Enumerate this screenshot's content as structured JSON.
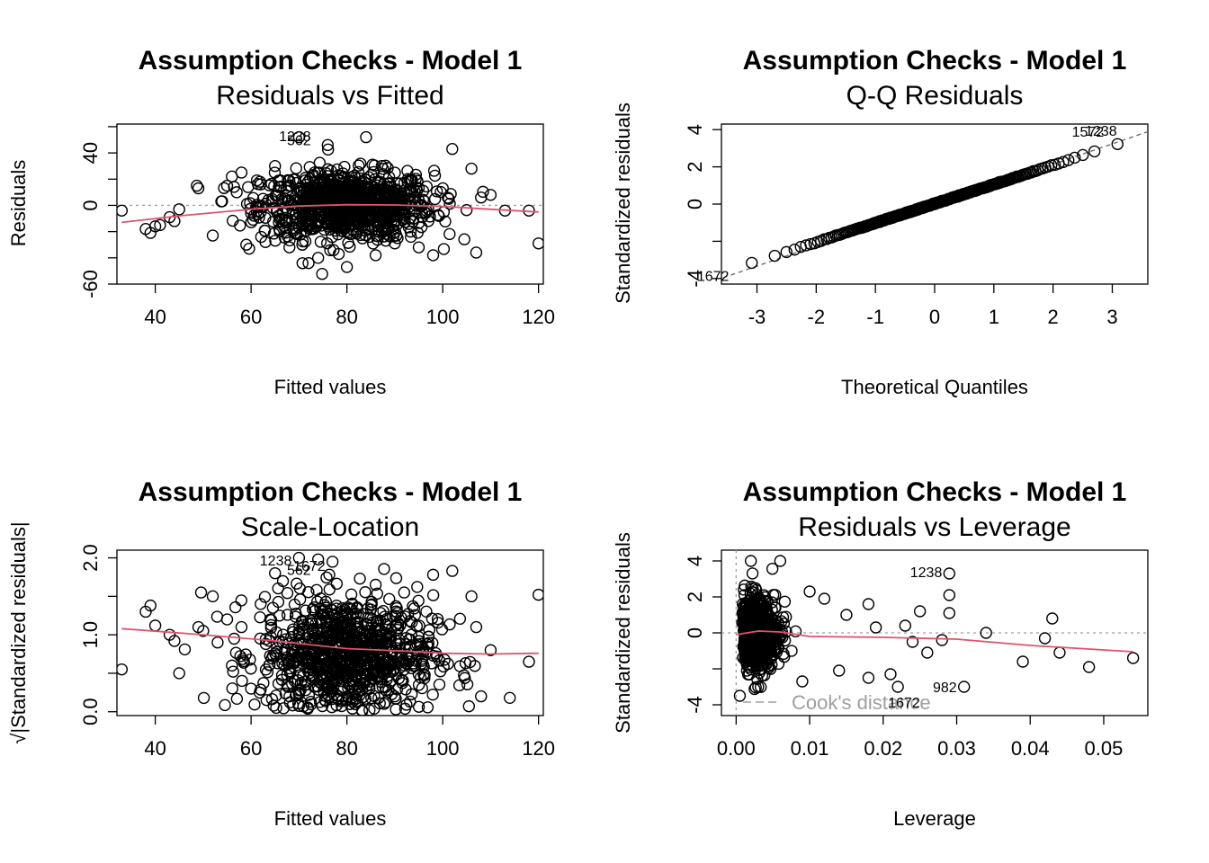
{
  "colors": {
    "points": "#000000",
    "smooth": "#DF536B",
    "reference": "#9e9e9e",
    "background": "#ffffff"
  },
  "chart_data": [
    {
      "type": "scatter",
      "title": "Assumption Checks - Model 1",
      "subtitle": "Residuals vs Fitted",
      "xlabel": "Fitted values",
      "ylabel": "Residuals",
      "xlim": [
        32,
        121
      ],
      "ylim": [
        -60,
        62
      ],
      "xticks": [
        40,
        60,
        80,
        100,
        120
      ],
      "yticks": [
        -60,
        -40,
        -20,
        0,
        20,
        40,
        60
      ],
      "ytick_labels": [
        "-60",
        "",
        "",
        "0",
        "",
        "40",
        ""
      ],
      "reference_line": {
        "y": 0,
        "style": "dotted"
      },
      "smooth": [
        [
          33,
          -13
        ],
        [
          45,
          -8
        ],
        [
          60,
          -3
        ],
        [
          70,
          -0.5
        ],
        [
          80,
          0.5
        ],
        [
          90,
          0.3
        ],
        [
          100,
          -0.8
        ],
        [
          110,
          -3
        ],
        [
          120,
          -5
        ]
      ],
      "labeled_points": [
        {
          "x": 74,
          "y": 53,
          "text": "1238"
        },
        {
          "x": 74,
          "y": 50,
          "text": "562"
        }
      ],
      "outliers": [
        [
          33,
          -4
        ],
        [
          38,
          -18
        ],
        [
          39,
          -21
        ],
        [
          40,
          -16
        ],
        [
          41,
          -15
        ],
        [
          43,
          -9
        ],
        [
          44,
          -12
        ],
        [
          45,
          -3
        ],
        [
          49,
          13
        ],
        [
          52,
          -23
        ],
        [
          55,
          15
        ],
        [
          56,
          22
        ],
        [
          57,
          10
        ],
        [
          58,
          25
        ],
        [
          59,
          -30
        ],
        [
          60,
          -6
        ],
        [
          62,
          16
        ],
        [
          63,
          -28
        ],
        [
          65,
          30
        ],
        [
          66,
          -20
        ],
        [
          68,
          -32
        ],
        [
          70,
          52
        ],
        [
          72,
          -44
        ],
        [
          74,
          -40
        ],
        [
          76,
          46
        ],
        [
          80,
          -47
        ],
        [
          84,
          52
        ],
        [
          86,
          -38
        ],
        [
          90,
          -29
        ],
        [
          95,
          -32
        ],
        [
          98,
          -38
        ],
        [
          102,
          43
        ],
        [
          106,
          28
        ],
        [
          107,
          -36
        ],
        [
          108,
          6
        ],
        [
          110,
          8
        ],
        [
          113,
          -4
        ],
        [
          118,
          -4
        ],
        [
          120,
          -29
        ]
      ],
      "cloud": {
        "cx": 80,
        "cy": 0,
        "sx": 9,
        "sy": 13,
        "n": 900
      }
    },
    {
      "type": "scatter",
      "title": "Assumption Checks - Model 1",
      "subtitle": "Q-Q Residuals",
      "xlabel": "Theoretical Quantiles",
      "ylabel": "Standardized residuals",
      "xlim": [
        -3.6,
        3.6
      ],
      "ylim": [
        -4.3,
        4.3
      ],
      "xticks": [
        -3,
        -2,
        -1,
        0,
        1,
        2,
        3
      ],
      "yticks": [
        -4,
        -2,
        0,
        2,
        4
      ],
      "ytick_labels": [
        "-4",
        "",
        "0",
        "2",
        "4"
      ],
      "reference_line": {
        "from": [
          -3.7,
          -4.1
        ],
        "to": [
          3.7,
          4.0
        ],
        "style": "dashed"
      },
      "labeled_points": [
        {
          "x": 2.98,
          "y": 3.92,
          "text": "1572"
        },
        {
          "x": 3.2,
          "y": 3.95,
          "text": "1238"
        },
        {
          "x": -3.35,
          "y": -3.85,
          "text": "1672"
        }
      ],
      "qq": {
        "n": 260
      }
    },
    {
      "type": "scatter",
      "title": "Assumption Checks - Model 1",
      "subtitle": "Scale-Location",
      "xlabel": "Fitted values",
      "ylabel": "√|Standardized residuals|",
      "xlim": [
        32,
        121
      ],
      "ylim": [
        -0.05,
        2.1
      ],
      "xticks": [
        40,
        60,
        80,
        100,
        120
      ],
      "yticks": [
        0.0,
        0.5,
        1.0,
        1.5,
        2.0
      ],
      "ytick_labels": [
        "0.0",
        "",
        "1.0",
        "",
        "2.0"
      ],
      "smooth": [
        [
          33,
          1.08
        ],
        [
          50,
          1.0
        ],
        [
          65,
          0.92
        ],
        [
          80,
          0.82
        ],
        [
          95,
          0.78
        ],
        [
          100,
          0.76
        ],
        [
          110,
          0.75
        ],
        [
          120,
          0.76
        ]
      ],
      "labeled_points": [
        {
          "x": 70,
          "y": 1.97,
          "text": "1238"
        },
        {
          "x": 77,
          "y": 1.9,
          "text": "1672"
        },
        {
          "x": 74,
          "y": 1.85,
          "text": "562"
        }
      ],
      "outliers": [
        [
          33,
          0.55
        ],
        [
          38,
          1.3
        ],
        [
          39,
          1.38
        ],
        [
          40,
          1.12
        ],
        [
          43,
          1.0
        ],
        [
          44,
          0.92
        ],
        [
          45,
          0.5
        ],
        [
          49,
          1.1
        ],
        [
          50,
          1.05
        ],
        [
          52,
          1.5
        ],
        [
          55,
          1.2
        ],
        [
          56,
          0.6
        ],
        [
          58,
          1.1
        ],
        [
          60,
          0.3
        ],
        [
          62,
          1.4
        ],
        [
          65,
          1.8
        ],
        [
          70,
          2.0
        ],
        [
          74,
          1.98
        ],
        [
          77,
          1.95
        ],
        [
          86,
          1.65
        ],
        [
          98,
          1.78
        ],
        [
          102,
          1.83
        ],
        [
          106,
          1.5
        ],
        [
          107,
          1.1
        ],
        [
          108,
          0.2
        ],
        [
          110,
          0.8
        ],
        [
          114,
          0.18
        ],
        [
          118,
          0.65
        ],
        [
          120,
          1.52
        ]
      ],
      "cloud": {
        "cx": 80,
        "cy": 0.75,
        "sx": 9,
        "sy": 0.38,
        "n": 900
      }
    },
    {
      "type": "scatter",
      "title": "Assumption Checks - Model 1",
      "subtitle": "Residuals vs Leverage",
      "xlabel": "Leverage",
      "ylabel": "Standardized residuals",
      "xlim": [
        -0.002,
        0.056
      ],
      "ylim": [
        -4.6,
        4.6
      ],
      "xticks": [
        0.0,
        0.01,
        0.02,
        0.03,
        0.04,
        0.05
      ],
      "xtick_labels": [
        "0.00",
        "0.01",
        "0.02",
        "0.03",
        "0.04",
        "0.05"
      ],
      "yticks": [
        -4,
        -2,
        0,
        2,
        4
      ],
      "ytick_labels": [
        "-4",
        "",
        "0",
        "2",
        "4"
      ],
      "reference_line": {
        "y": 0,
        "x": 0,
        "style": "dotted"
      },
      "smooth": [
        [
          0.0,
          -0.1
        ],
        [
          0.003,
          0.1
        ],
        [
          0.006,
          0.05
        ],
        [
          0.01,
          -0.2
        ],
        [
          0.02,
          -0.25
        ],
        [
          0.03,
          -0.35
        ],
        [
          0.04,
          -0.7
        ],
        [
          0.054,
          -1.05
        ]
      ],
      "legend_text": "Cook's distance",
      "labeled_points": [
        {
          "x": 0.029,
          "y": 3.4,
          "text": "1238"
        },
        {
          "x": 0.031,
          "y": -3.0,
          "text": "982"
        },
        {
          "x": 0.026,
          "y": -3.85,
          "text": "1672"
        }
      ],
      "outliers": [
        [
          0.0005,
          -3.5
        ],
        [
          0.002,
          4.0
        ],
        [
          0.003,
          -3.0
        ],
        [
          0.006,
          4.0
        ],
        [
          0.009,
          -2.7
        ],
        [
          0.01,
          2.3
        ],
        [
          0.012,
          1.9
        ],
        [
          0.014,
          -2.1
        ],
        [
          0.015,
          1.0
        ],
        [
          0.018,
          1.6
        ],
        [
          0.018,
          -2.5
        ],
        [
          0.019,
          0.3
        ],
        [
          0.021,
          -2.3
        ],
        [
          0.022,
          -3.0
        ],
        [
          0.023,
          0.4
        ],
        [
          0.024,
          -0.5
        ],
        [
          0.025,
          1.2
        ],
        [
          0.026,
          -1.1
        ],
        [
          0.028,
          -0.4
        ],
        [
          0.029,
          3.3
        ],
        [
          0.029,
          2.1
        ],
        [
          0.029,
          1.1
        ],
        [
          0.031,
          -3.0
        ],
        [
          0.034,
          0.0
        ],
        [
          0.039,
          -1.6
        ],
        [
          0.042,
          -0.3
        ],
        [
          0.043,
          0.8
        ],
        [
          0.044,
          -1.1
        ],
        [
          0.048,
          -1.9
        ],
        [
          0.054,
          -1.4
        ]
      ],
      "cloud": {
        "cx": 0.003,
        "cy": 0.0,
        "sx": 0.002,
        "sy": 1.0,
        "n": 700
      }
    }
  ]
}
